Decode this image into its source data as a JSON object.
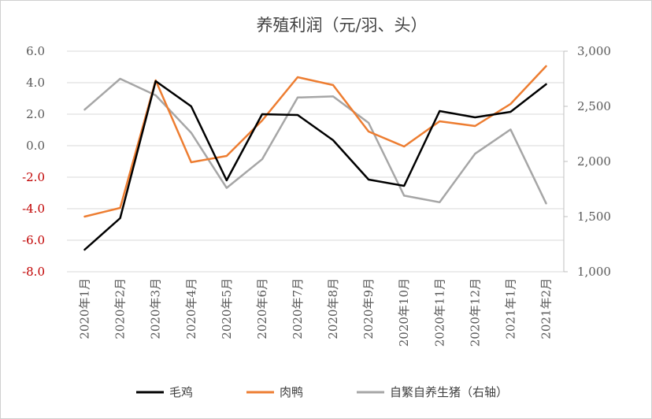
{
  "chart_data": {
    "type": "line",
    "title": "养殖利润（元/羽、头）",
    "categories": [
      "2020年1月",
      "2020年2月",
      "2020年3月",
      "2020年4月",
      "2020年5月",
      "2020年6月",
      "2020年7月",
      "2020年8月",
      "2020年9月",
      "2020年10月",
      "2020年11月",
      "2020年12月",
      "2021年1月",
      "2021年2月"
    ],
    "left_axis": {
      "range": [
        -8,
        6
      ],
      "ticks": [
        "6.0",
        "4.0",
        "2.0",
        "0.0",
        "-2.0",
        "-4.0",
        "-6.0",
        "-8.0"
      ],
      "tick_values": [
        6,
        4,
        2,
        0,
        -2,
        -4,
        -6,
        -8
      ],
      "positive_color": "#595959",
      "negative_color": "#c00000"
    },
    "right_axis": {
      "range": [
        1000,
        3000
      ],
      "ticks": [
        "3,000",
        "2,500",
        "2,000",
        "1,500",
        "1,000"
      ],
      "tick_values": [
        3000,
        2500,
        2000,
        1500,
        1000
      ],
      "color": "#595959"
    },
    "series": [
      {
        "name": "毛鸡",
        "axis": "left",
        "color": "#000000",
        "values": [
          -6.6,
          -4.6,
          4.1,
          2.5,
          -2.2,
          2.0,
          1.95,
          0.35,
          -2.15,
          -2.55,
          2.2,
          1.8,
          2.15,
          3.9
        ]
      },
      {
        "name": "肉鸭",
        "axis": "left",
        "color": "#ed7d31",
        "values": [
          -4.5,
          -3.95,
          4.15,
          -1.05,
          -0.65,
          1.6,
          4.35,
          3.85,
          0.9,
          -0.05,
          1.55,
          1.25,
          2.65,
          5.05
        ]
      },
      {
        "name": "自繁自养生猪（右轴）",
        "axis": "right",
        "color": "#a6a6a6",
        "values": [
          2470,
          2750,
          2600,
          2260,
          1760,
          2020,
          2580,
          2590,
          2350,
          1690,
          1630,
          2070,
          2290,
          1620
        ]
      }
    ],
    "grid": true,
    "legend_position": "bottom"
  }
}
